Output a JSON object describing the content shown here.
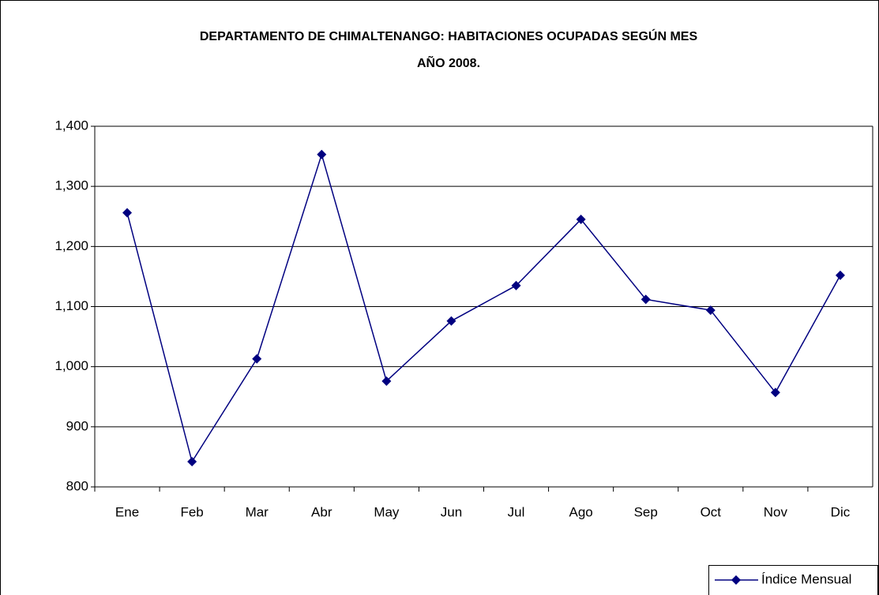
{
  "chart_data": {
    "type": "line",
    "title": "DEPARTAMENTO DE CHIMALTENANGO: HABITACIONES OCUPADAS SEGÚN MES",
    "subtitle": "AÑO 2008.",
    "categories": [
      "Ene",
      "Feb",
      "Mar",
      "Abr",
      "May",
      "Jun",
      "Jul",
      "Ago",
      "Sep",
      "Oct",
      "Nov",
      "Dic"
    ],
    "series": [
      {
        "name": "Índice Mensual",
        "color": "#000080",
        "values": [
          1256,
          842,
          1013,
          1353,
          976,
          1076,
          1135,
          1245,
          1112,
          1094,
          957,
          1152
        ]
      }
    ],
    "ylim": [
      800,
      1400
    ],
    "yticks": [
      800,
      900,
      {
        "value": 1000,
        "label": "1,000"
      },
      {
        "value": 1100,
        "label": "1,100"
      },
      {
        "value": 1200,
        "label": "1,200"
      },
      {
        "value": 1300,
        "label": "1,300"
      },
      {
        "value": 1400,
        "label": "1,400"
      }
    ],
    "grid": true,
    "legend": "bottom-right"
  }
}
